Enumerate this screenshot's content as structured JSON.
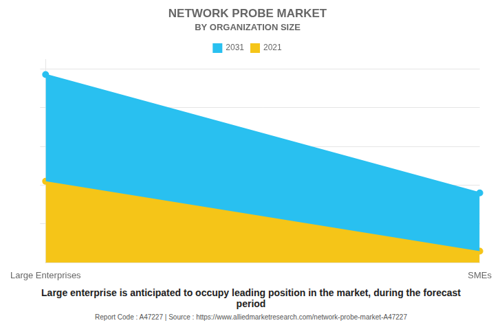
{
  "chart_data": {
    "type": "area",
    "title": "NETWORK PROBE MARKET",
    "subtitle": "BY ORGANIZATION SIZE",
    "categories": [
      "Large Enterprises",
      "SMEs"
    ],
    "series": [
      {
        "name": "2021",
        "color": "#F5C518",
        "values": [
          0.42,
          0.06
        ]
      },
      {
        "name": "2031",
        "color": "#29C0F0",
        "values": [
          0.97,
          0.36
        ]
      }
    ],
    "ylim": [
      0,
      1.05
    ],
    "yticks": [
      0.2,
      0.4,
      0.6,
      0.8,
      1.0
    ],
    "grid": true,
    "legend": "top",
    "tick_labels": "x",
    "annotations": [
      "Large enterprise is anticipated to occupy leading position in the market, during the forecast\nperiod",
      "Report Code : A47227  |  Source : https://www.alliedmarketresearch.com/network-probe-market-A47227"
    ]
  }
}
